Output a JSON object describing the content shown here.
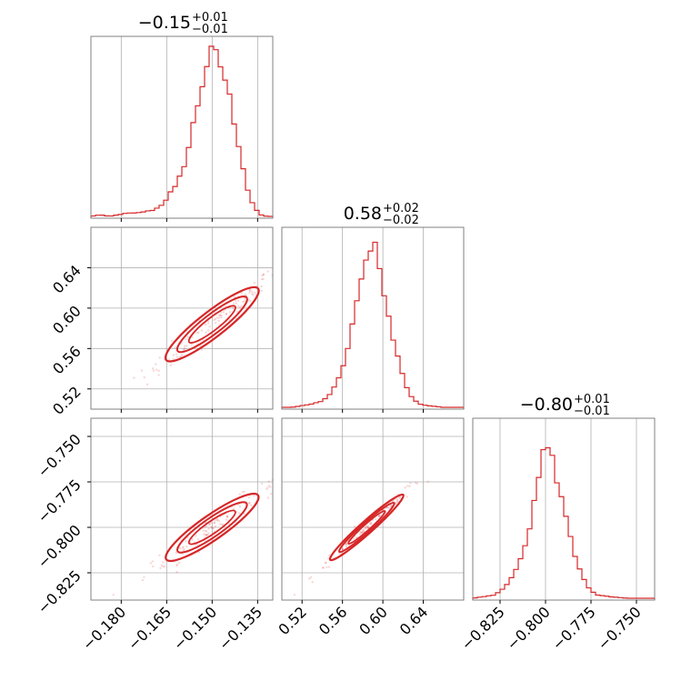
{
  "chart_data": {
    "type": "corner",
    "color": "#d62728",
    "grid": true,
    "parameters": [
      {
        "range": [
          -0.19,
          -0.13
        ],
        "ticks": [
          -0.18,
          -0.165,
          -0.15,
          -0.135
        ],
        "tick_labels": [
          "−0.180",
          "−0.165",
          "−0.150",
          "−0.135"
        ],
        "title": {
          "main": "−0.15",
          "plus": "+0.01",
          "minus": "−0.01"
        },
        "hist_density": [
          [
            -0.19,
            0.0
          ],
          [
            -0.187,
            0.01
          ],
          [
            -0.184,
            0.0
          ],
          [
            -0.181,
            0.01
          ],
          [
            -0.178,
            0.02
          ],
          [
            -0.175,
            0.02
          ],
          [
            -0.172,
            0.03
          ],
          [
            -0.169,
            0.04
          ],
          [
            -0.166,
            0.08
          ],
          [
            -0.164,
            0.14
          ],
          [
            -0.162,
            0.18
          ],
          [
            -0.16,
            0.27
          ],
          [
            -0.158,
            0.4
          ],
          [
            -0.156,
            0.58
          ],
          [
            -0.154,
            0.75
          ],
          [
            -0.152,
            0.92
          ],
          [
            -0.15,
            1.0
          ],
          [
            -0.148,
            0.96
          ],
          [
            -0.146,
            0.86
          ],
          [
            -0.144,
            0.7
          ],
          [
            -0.142,
            0.52
          ],
          [
            -0.14,
            0.32
          ],
          [
            -0.138,
            0.14
          ],
          [
            -0.136,
            0.05
          ],
          [
            -0.134,
            0.01
          ],
          [
            -0.132,
            0.0
          ]
        ]
      },
      {
        "range": [
          0.5,
          0.68
        ],
        "ticks": [
          0.52,
          0.56,
          0.6,
          0.64
        ],
        "tick_labels": [
          "0.52",
          "0.56",
          "0.60",
          "0.64"
        ],
        "title": {
          "main": "0.58",
          "plus": "+0.02",
          "minus": "−0.02"
        },
        "hist_density": [
          [
            0.5,
            0.0
          ],
          [
            0.51,
            0.0
          ],
          [
            0.52,
            0.01
          ],
          [
            0.53,
            0.02
          ],
          [
            0.54,
            0.04
          ],
          [
            0.548,
            0.08
          ],
          [
            0.554,
            0.14
          ],
          [
            0.56,
            0.24
          ],
          [
            0.566,
            0.38
          ],
          [
            0.572,
            0.55
          ],
          [
            0.578,
            0.74
          ],
          [
            0.584,
            0.92
          ],
          [
            0.588,
            1.0
          ],
          [
            0.592,
            0.96
          ],
          [
            0.596,
            0.86
          ],
          [
            0.6,
            0.72
          ],
          [
            0.606,
            0.55
          ],
          [
            0.612,
            0.38
          ],
          [
            0.618,
            0.22
          ],
          [
            0.624,
            0.11
          ],
          [
            0.63,
            0.05
          ],
          [
            0.636,
            0.02
          ],
          [
            0.645,
            0.01
          ],
          [
            0.66,
            0.0
          ],
          [
            0.68,
            0.0
          ]
        ]
      },
      {
        "range": [
          -0.84,
          -0.74
        ],
        "ticks": [
          -0.825,
          -0.8,
          -0.775,
          -0.75
        ],
        "tick_labels": [
          "−0.825",
          "−0.800",
          "−0.775",
          "−0.750"
        ],
        "title": {
          "main": "−0.80",
          "plus": "+0.01",
          "minus": "−0.01"
        },
        "hist_density": [
          [
            -0.84,
            0.0
          ],
          [
            -0.834,
            0.01
          ],
          [
            -0.828,
            0.02
          ],
          [
            -0.824,
            0.05
          ],
          [
            -0.82,
            0.1
          ],
          [
            -0.816,
            0.18
          ],
          [
            -0.812,
            0.3
          ],
          [
            -0.808,
            0.48
          ],
          [
            -0.805,
            0.68
          ],
          [
            -0.802,
            0.88
          ],
          [
            -0.8,
            1.0
          ],
          [
            -0.798,
            0.95
          ],
          [
            -0.795,
            0.82
          ],
          [
            -0.792,
            0.65
          ],
          [
            -0.788,
            0.46
          ],
          [
            -0.784,
            0.28
          ],
          [
            -0.78,
            0.14
          ],
          [
            -0.776,
            0.06
          ],
          [
            -0.772,
            0.02
          ],
          [
            -0.765,
            0.01
          ],
          [
            -0.755,
            0.0
          ],
          [
            -0.74,
            0.0
          ]
        ]
      }
    ],
    "correlations": {
      "0-1": 0.97,
      "0-2": 0.97,
      "1-2": 0.99
    }
  }
}
